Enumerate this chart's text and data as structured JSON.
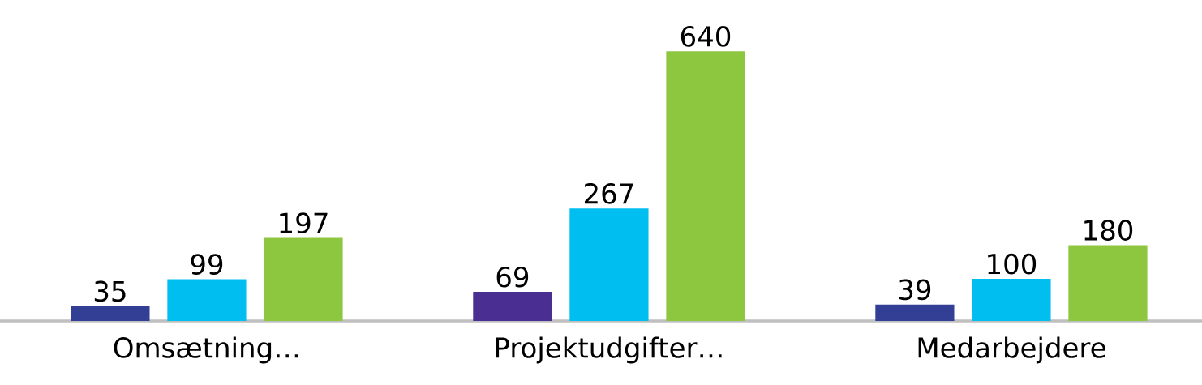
{
  "chart_data": {
    "type": "bar",
    "categories": [
      "Omsætning…",
      "Projektudgifter…",
      "Medarbejdere"
    ],
    "series": [
      {
        "colors": [
          "#333f94",
          "#4a2e91",
          "#333f94"
        ],
        "values": [
          35,
          69,
          39
        ]
      },
      {
        "color": "#00bff0",
        "values": [
          99,
          267,
          100
        ]
      },
      {
        "color": "#8dc63f",
        "values": [
          197,
          640,
          180
        ]
      }
    ],
    "data_labels": true
  }
}
